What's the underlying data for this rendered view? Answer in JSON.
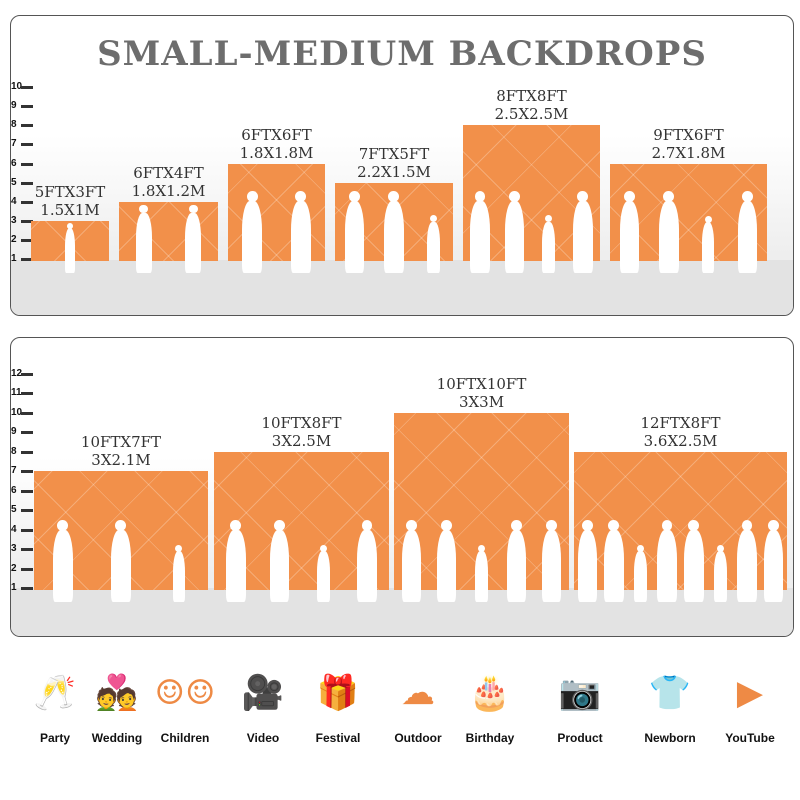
{
  "title": "SMALL-MEDIUM BACKDROPS",
  "accent": "#f2904a",
  "panel1": {
    "ticks": [
      1,
      2,
      3,
      4,
      5,
      6,
      7,
      8,
      9,
      10
    ],
    "backdrops": [
      {
        "ft": "5FTX3FT",
        "m": "1.5X1M",
        "width_ft": 5,
        "height_ft": 3,
        "people": 1
      },
      {
        "ft": "6FTX4FT",
        "m": "1.8X1.2M",
        "width_ft": 6,
        "height_ft": 4,
        "people": 2
      },
      {
        "ft": "6FTX6FT",
        "m": "1.8X1.8M",
        "width_ft": 6,
        "height_ft": 6,
        "people": 2
      },
      {
        "ft": "7FTX5FT",
        "m": "2.2X1.5M",
        "width_ft": 7,
        "height_ft": 5,
        "people": 3
      },
      {
        "ft": "8FTX8FT",
        "m": "2.5X2.5M",
        "width_ft": 8,
        "height_ft": 8,
        "people": 4
      },
      {
        "ft": "9FTX6FT",
        "m": "2.7X1.8M",
        "width_ft": 9,
        "height_ft": 6,
        "people": 4
      }
    ]
  },
  "panel2": {
    "ticks": [
      1,
      2,
      3,
      4,
      5,
      6,
      7,
      8,
      9,
      10,
      11,
      12
    ],
    "backdrops": [
      {
        "ft": "10FTX7FT",
        "m": "3X2.1M",
        "width_ft": 10,
        "height_ft": 7,
        "people": 3
      },
      {
        "ft": "10FTX8FT",
        "m": "3X2.5M",
        "width_ft": 10,
        "height_ft": 8,
        "people": 4
      },
      {
        "ft": "10FTX10FT",
        "m": "3X3M",
        "width_ft": 10,
        "height_ft": 10,
        "people": 5
      },
      {
        "ft": "12FTX8FT",
        "m": "3.6X2.5M",
        "width_ft": 12,
        "height_ft": 8,
        "people": 8
      }
    ]
  },
  "uses": [
    {
      "label": "Party",
      "icon": "glasses-icon",
      "glyph": "🥂"
    },
    {
      "label": "Wedding",
      "icon": "couple-icon",
      "glyph": "💑"
    },
    {
      "label": "Children",
      "icon": "kids-faces-icon",
      "glyph": "☺☺"
    },
    {
      "label": "Video",
      "icon": "movie-camera-icon",
      "glyph": "🎥"
    },
    {
      "label": "Festival",
      "icon": "gift-icon",
      "glyph": "🎁"
    },
    {
      "label": "Outdoor",
      "icon": "cloud-icon",
      "glyph": "☁"
    },
    {
      "label": "Birthday",
      "icon": "cake-icon",
      "glyph": "🎂"
    },
    {
      "label": "Product",
      "icon": "camera-icon",
      "glyph": "📷"
    },
    {
      "label": "Newborn",
      "icon": "onesie-icon",
      "glyph": "👕"
    },
    {
      "label": "YouTube",
      "icon": "play-icon",
      "glyph": "▶"
    }
  ]
}
